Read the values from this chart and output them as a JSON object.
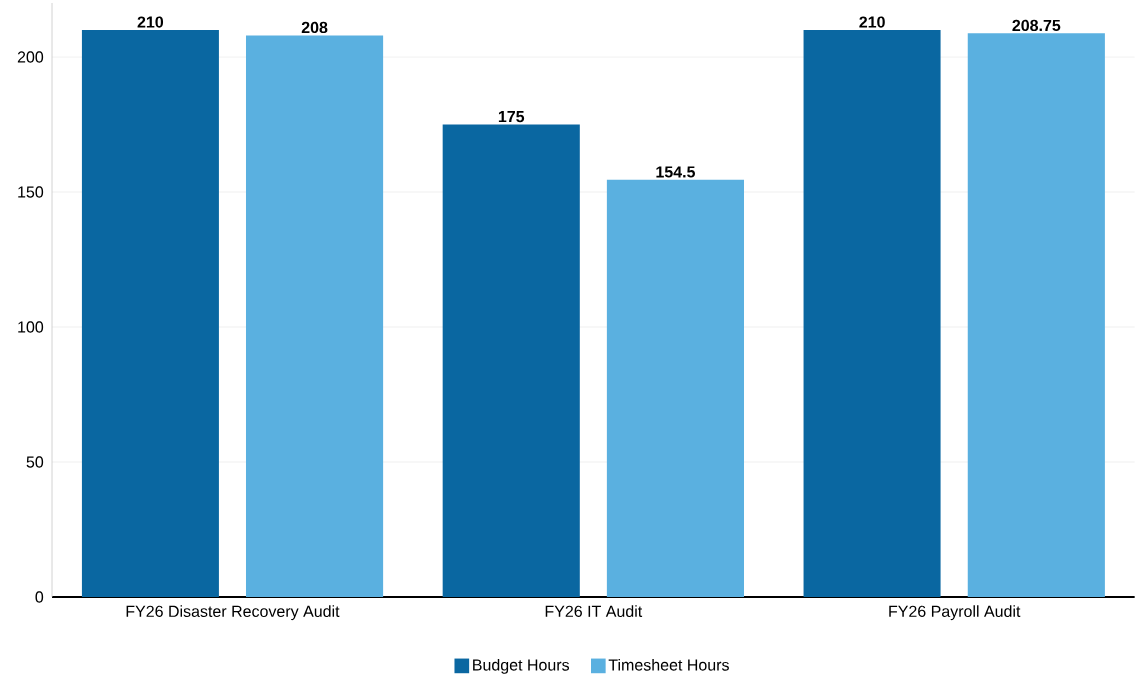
{
  "chart_data": {
    "type": "bar",
    "categories": [
      "FY26 Disaster Recovery Audit",
      "FY26 IT Audit",
      "FY26 Payroll Audit"
    ],
    "series": [
      {
        "name": "Budget Hours",
        "color": "#0a67a1",
        "values": [
          210,
          175,
          210
        ],
        "value_labels": [
          "210",
          "175",
          "210"
        ]
      },
      {
        "name": "Timesheet Hours",
        "color": "#5ab0e0",
        "values": [
          208,
          154.5,
          208.75
        ],
        "value_labels": [
          "208",
          "154.5",
          "208.75"
        ]
      }
    ],
    "ylim": [
      0,
      220
    ],
    "yticks": [
      0,
      50,
      100,
      150,
      200
    ],
    "grid": "y",
    "legend": "bottom"
  }
}
